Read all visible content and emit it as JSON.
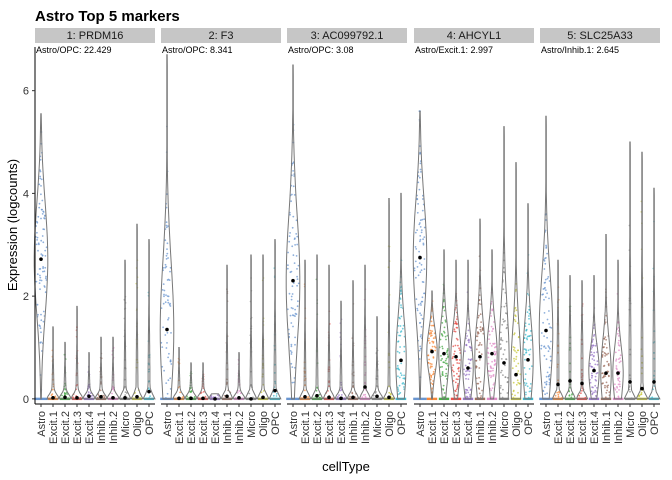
{
  "chart_data": {
    "type": "violin",
    "title": "Astro Top 5 markers",
    "xlabel": "cellType",
    "ylabel": "Expression (logcounts)",
    "ylim": [
      -0.1,
      6.85
    ],
    "yticks": [
      0,
      2,
      4,
      6
    ],
    "grid": false,
    "legend": "none",
    "categories": [
      "Astro",
      "Excit.1",
      "Excit.2",
      "Excit.3",
      "Excit.4",
      "Inhib.1",
      "Inhib.2",
      "Micro",
      "Oligo",
      "OPC"
    ],
    "colors": {
      "Astro": "#6a96d0",
      "Excit.1": "#f5883a",
      "Excit.2": "#4aaa4a",
      "Excit.3": "#e5504a",
      "Excit.4": "#9a78c8",
      "Inhib.1": "#a07060",
      "Inhib.2": "#e08cc8",
      "Micro": "#8c8c8c",
      "Oligo": "#c8c83c",
      "OPC": "#40bcd0"
    },
    "panels": [
      {
        "strip": "1: PRDM16",
        "annotation": "Astro/OPC: 22.429",
        "max": [
          5.55,
          1.4,
          1.1,
          1.8,
          0.9,
          1.2,
          1.2,
          2.7,
          3.4,
          3.1
        ],
        "means": [
          2.72,
          0.02,
          0.03,
          0.02,
          0.05,
          0.04,
          0.02,
          0.02,
          0.04,
          0.14
        ]
      },
      {
        "strip": "2: F3",
        "annotation": "Astro/OPC: 8.341",
        "max": [
          6.7,
          1.0,
          0.7,
          0.7,
          0.1,
          2.6,
          0.9,
          2.8,
          2.8,
          3.1
        ],
        "means": [
          1.35,
          0.01,
          0.01,
          0.01,
          0.0,
          0.05,
          0.02,
          0.0,
          0.03,
          0.16
        ]
      },
      {
        "strip": "3: AC099792.1",
        "annotation": "Astro/OPC: 3.08",
        "max": [
          6.5,
          2.7,
          2.8,
          2.6,
          1.9,
          2.3,
          2.6,
          1.6,
          3.9,
          4.0
        ],
        "means": [
          2.3,
          0.04,
          0.06,
          0.03,
          0.01,
          0.03,
          0.23,
          0.05,
          0.03,
          0.75
        ]
      },
      {
        "strip": "4: AHCYL1",
        "annotation": "Astro/Excit.1: 2.997",
        "max": [
          5.6,
          2.1,
          2.9,
          2.7,
          2.7,
          3.5,
          2.9,
          5.3,
          4.6,
          3.8
        ],
        "means": [
          2.75,
          0.92,
          0.88,
          0.82,
          0.6,
          0.82,
          0.88,
          0.7,
          0.47,
          0.76
        ]
      },
      {
        "strip": "5: SLC25A33",
        "annotation": "Astro/Inhib.1: 2.645",
        "max": [
          5.5,
          2.7,
          2.4,
          2.3,
          2.4,
          3.2,
          2.7,
          5.0,
          4.8,
          4.1
        ],
        "means": [
          1.33,
          0.28,
          0.35,
          0.3,
          0.55,
          0.5,
          0.5,
          0.33,
          0.2,
          0.33
        ]
      }
    ]
  }
}
